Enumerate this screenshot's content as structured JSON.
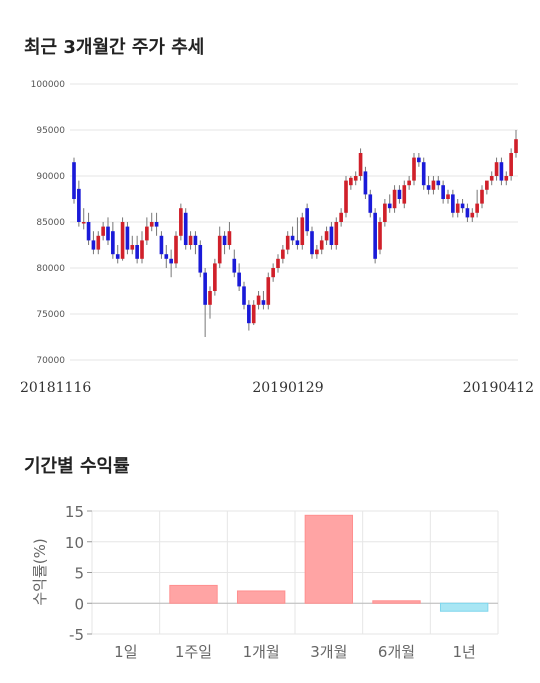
{
  "sections": {
    "price_title": "최근 3개월간 주가 추세",
    "returns_title": "기간별 수익률"
  },
  "colors": {
    "up": "#d0202a",
    "down": "#1a1ad8",
    "wick": "#777777",
    "grid": "#e6e6e6",
    "bar_positive": "#ffa4a4",
    "bar_negative": "#a8e6f4"
  },
  "chart_data": [
    {
      "type": "candlestick",
      "title": "최근 3개월간 주가 추세",
      "ylim": [
        70000,
        100000
      ],
      "yticks": [
        70000,
        75000,
        80000,
        85000,
        90000,
        95000,
        100000
      ],
      "x_labels": [
        "20181116",
        "20190129",
        "20190412"
      ],
      "grid": true,
      "candles": [
        [
          91500,
          87500,
          92000,
          87000
        ],
        [
          88600,
          85000,
          89500,
          84500
        ],
        [
          85000,
          85000,
          86500,
          84200
        ],
        [
          85000,
          83000,
          86000,
          82500
        ],
        [
          83000,
          82000,
          84000,
          81500
        ],
        [
          82000,
          83500,
          84000,
          81500
        ],
        [
          83500,
          84500,
          85000,
          83000
        ],
        [
          84500,
          83000,
          85500,
          82500
        ],
        [
          84000,
          81500,
          85000,
          81000
        ],
        [
          81500,
          81000,
          82500,
          80500
        ],
        [
          81000,
          85000,
          85500,
          80800
        ],
        [
          84500,
          82000,
          85000,
          81500
        ],
        [
          82000,
          82500,
          83500,
          81500
        ],
        [
          82500,
          81000,
          83500,
          80500
        ],
        [
          81000,
          83000,
          84000,
          80500
        ],
        [
          83000,
          84500,
          85500,
          82500
        ],
        [
          84500,
          85000,
          86000,
          84000
        ],
        [
          85000,
          84500,
          86000,
          83500
        ],
        [
          83500,
          81500,
          84000,
          81000
        ],
        [
          81500,
          81000,
          82500,
          80000
        ],
        [
          81000,
          80500,
          82000,
          79000
        ],
        [
          80500,
          83500,
          84000,
          80000
        ],
        [
          83500,
          86500,
          87000,
          83000
        ],
        [
          86000,
          82500,
          86500,
          82000
        ],
        [
          82500,
          83500,
          84000,
          82000
        ],
        [
          83500,
          82500,
          84000,
          81500
        ],
        [
          82500,
          79500,
          83000,
          79000
        ],
        [
          79500,
          76000,
          80000,
          72500
        ],
        [
          76000,
          77500,
          78000,
          74500
        ],
        [
          77500,
          80500,
          81000,
          77000
        ],
        [
          80500,
          83500,
          84500,
          80000
        ],
        [
          83500,
          82500,
          84000,
          81500
        ],
        [
          82500,
          84000,
          85000,
          82000
        ],
        [
          81000,
          79500,
          82000,
          79000
        ],
        [
          79500,
          78000,
          80500,
          77500
        ],
        [
          78000,
          76000,
          78500,
          75500
        ],
        [
          76000,
          74000,
          76500,
          73200
        ],
        [
          74000,
          76000,
          76500,
          73800
        ],
        [
          76000,
          77000,
          77500,
          75500
        ],
        [
          76500,
          76000,
          77500,
          75500
        ],
        [
          76000,
          79000,
          79500,
          75500
        ],
        [
          79000,
          80000,
          80500,
          78500
        ],
        [
          80000,
          81000,
          81500,
          79500
        ],
        [
          81000,
          82000,
          82500,
          80500
        ],
        [
          82000,
          83500,
          84000,
          81500
        ],
        [
          83500,
          83000,
          84500,
          82500
        ],
        [
          83000,
          82500,
          85500,
          82000
        ],
        [
          82500,
          85500,
          86000,
          82000
        ],
        [
          86500,
          84000,
          87000,
          83500
        ],
        [
          84000,
          81500,
          84500,
          81000
        ],
        [
          81500,
          82000,
          82500,
          81000
        ],
        [
          82000,
          83000,
          83500,
          81500
        ],
        [
          83000,
          84000,
          84500,
          82500
        ],
        [
          84500,
          82500,
          85000,
          82000
        ],
        [
          82500,
          85000,
          85500,
          82000
        ],
        [
          85000,
          86000,
          86500,
          84500
        ],
        [
          86000,
          89500,
          90000,
          85500
        ],
        [
          89000,
          89800,
          90000,
          88500
        ],
        [
          89500,
          90000,
          90500,
          89000
        ],
        [
          90000,
          92500,
          93000,
          89500
        ],
        [
          90500,
          88000,
          91000,
          87500
        ],
        [
          88000,
          86000,
          88500,
          85500
        ],
        [
          86000,
          81000,
          86500,
          80500
        ],
        [
          82000,
          85000,
          85500,
          81500
        ],
        [
          85000,
          87000,
          87500,
          84500
        ],
        [
          87000,
          86500,
          88000,
          86000
        ],
        [
          86500,
          88500,
          89000,
          86000
        ],
        [
          88500,
          87500,
          89000,
          87000
        ],
        [
          87000,
          89000,
          89500,
          86500
        ],
        [
          89000,
          89500,
          90000,
          88500
        ],
        [
          89500,
          92000,
          92500,
          89000
        ],
        [
          92000,
          91500,
          92500,
          91000
        ],
        [
          91500,
          89000,
          92000,
          88500
        ],
        [
          89000,
          88500,
          90000,
          88000
        ],
        [
          88500,
          89500,
          90000,
          88000
        ],
        [
          89500,
          89000,
          90000,
          88500
        ],
        [
          89000,
          87500,
          89500,
          87000
        ],
        [
          87500,
          88000,
          88500,
          87000
        ],
        [
          88000,
          86000,
          88500,
          85500
        ],
        [
          86000,
          87000,
          87500,
          85500
        ],
        [
          87000,
          86500,
          87500,
          86000
        ],
        [
          86500,
          85500,
          87000,
          85000
        ],
        [
          85500,
          86000,
          86500,
          85000
        ],
        [
          86000,
          87000,
          88500,
          85500
        ],
        [
          87000,
          88500,
          89000,
          86500
        ],
        [
          88500,
          89500,
          89000,
          88000
        ],
        [
          89500,
          90000,
          90500,
          89000
        ],
        [
          90000,
          91500,
          92000,
          89500
        ],
        [
          91500,
          89500,
          92000,
          89000
        ],
        [
          89500,
          90000,
          90500,
          89000
        ],
        [
          90000,
          92500,
          93000,
          89500
        ],
        [
          92500,
          94000,
          95000,
          92000
        ]
      ]
    },
    {
      "type": "bar",
      "title": "기간별 수익률",
      "ylabel": "수익률(%)",
      "categories": [
        "1일",
        "1주일",
        "1개월",
        "3개월",
        "6개월",
        "1년"
      ],
      "values": [
        0,
        2.9,
        2.0,
        14.3,
        0.4,
        -1.3
      ],
      "ylim": [
        -5,
        15
      ],
      "yticks": [
        15,
        10,
        5,
        0,
        -5
      ],
      "grid": true
    }
  ]
}
